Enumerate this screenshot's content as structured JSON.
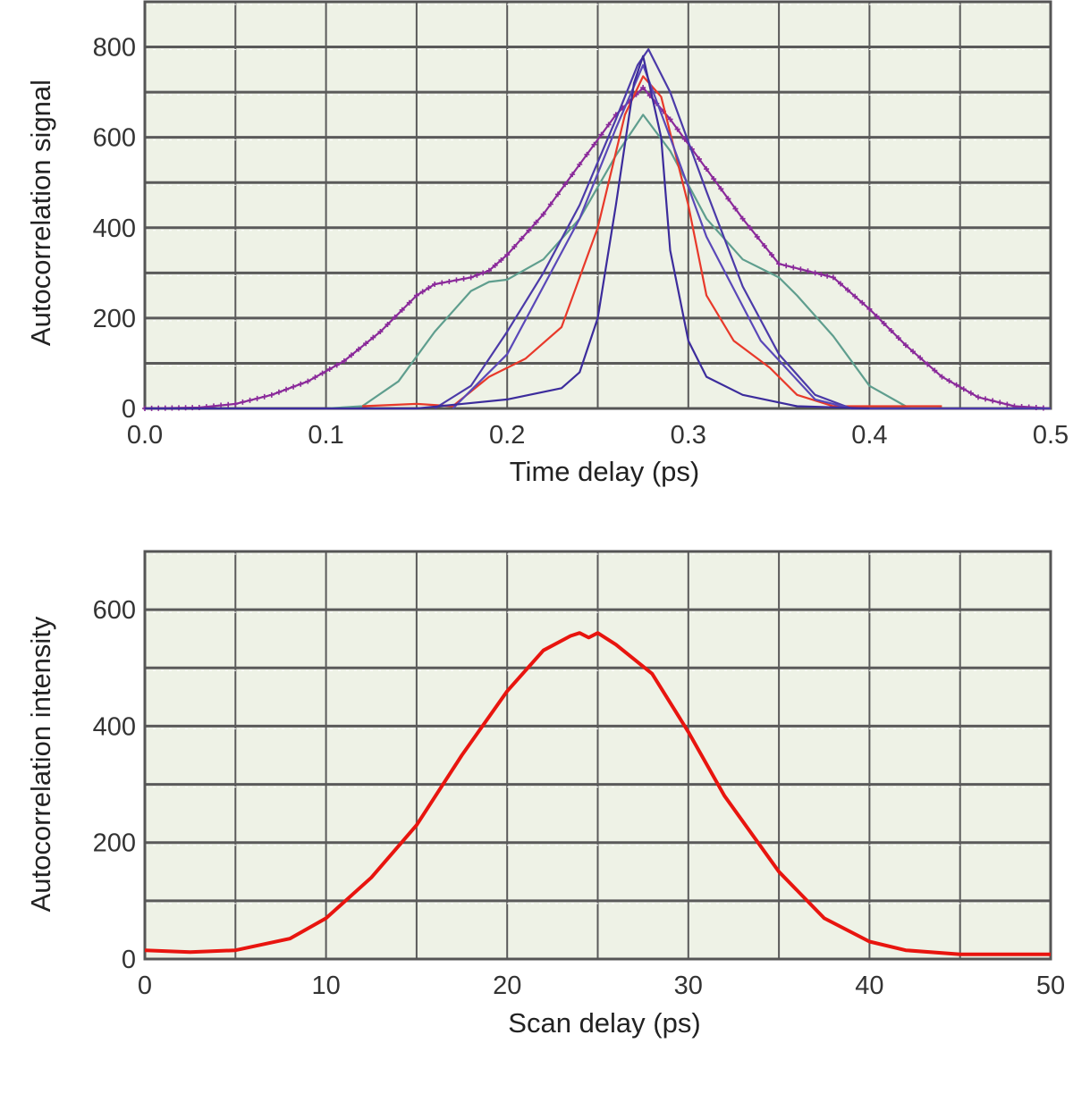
{
  "chart_data": [
    {
      "type": "line",
      "xlabel": "Time delay (ps)",
      "ylabel": "Autocorrelation signal",
      "xlim": [
        0,
        0.5
      ],
      "ylim": [
        0,
        900
      ],
      "x_ticks": [
        "0.0",
        "0.1",
        "0.2",
        "0.3",
        "0.4",
        "0.5"
      ],
      "x_tick_values": [
        0,
        0.1,
        0.2,
        0.3,
        0.4,
        0.5
      ],
      "y_ticks": [
        "0",
        "200",
        "400",
        "600",
        "800"
      ],
      "y_tick_values": [
        0,
        200,
        400,
        600,
        800
      ],
      "x_grid_step": 0.05,
      "y_grid_step": 100,
      "grid": true,
      "background": "#eef2e6",
      "series": [
        {
          "color": "#8a2a9a",
          "marker": "plus",
          "points": [
            [
              0,
              0
            ],
            [
              0.03,
              2
            ],
            [
              0.05,
              10
            ],
            [
              0.07,
              30
            ],
            [
              0.09,
              60
            ],
            [
              0.11,
              105
            ],
            [
              0.13,
              170
            ],
            [
              0.15,
              250
            ],
            [
              0.16,
              275
            ],
            [
              0.18,
              290
            ],
            [
              0.19,
              305
            ],
            [
              0.2,
              340
            ],
            [
              0.22,
              430
            ],
            [
              0.24,
              540
            ],
            [
              0.26,
              650
            ],
            [
              0.275,
              710
            ],
            [
              0.29,
              640
            ],
            [
              0.31,
              530
            ],
            [
              0.33,
              420
            ],
            [
              0.35,
              320
            ],
            [
              0.37,
              300
            ],
            [
              0.38,
              290
            ],
            [
              0.4,
              220
            ],
            [
              0.42,
              140
            ],
            [
              0.44,
              70
            ],
            [
              0.46,
              25
            ],
            [
              0.48,
              5
            ],
            [
              0.5,
              0
            ]
          ]
        },
        {
          "color": "#5f9e8e",
          "points": [
            [
              0.1,
              0
            ],
            [
              0.12,
              5
            ],
            [
              0.14,
              60
            ],
            [
              0.16,
              170
            ],
            [
              0.18,
              260
            ],
            [
              0.19,
              280
            ],
            [
              0.2,
              285
            ],
            [
              0.22,
              330
            ],
            [
              0.24,
              420
            ],
            [
              0.26,
              560
            ],
            [
              0.275,
              650
            ],
            [
              0.29,
              570
            ],
            [
              0.31,
              420
            ],
            [
              0.33,
              330
            ],
            [
              0.35,
              290
            ],
            [
              0.36,
              250
            ],
            [
              0.38,
              160
            ],
            [
              0.4,
              50
            ],
            [
              0.42,
              5
            ],
            [
              0.44,
              0
            ]
          ]
        },
        {
          "color": "#e8392a",
          "points": [
            [
              0.12,
              5
            ],
            [
              0.15,
              10
            ],
            [
              0.17,
              5
            ],
            [
              0.19,
              70
            ],
            [
              0.21,
              110
            ],
            [
              0.23,
              180
            ],
            [
              0.25,
              400
            ],
            [
              0.265,
              650
            ],
            [
              0.275,
              735
            ],
            [
              0.285,
              690
            ],
            [
              0.3,
              450
            ],
            [
              0.31,
              250
            ],
            [
              0.325,
              150
            ],
            [
              0.345,
              90
            ],
            [
              0.36,
              30
            ],
            [
              0.38,
              5
            ],
            [
              0.44,
              5
            ]
          ]
        },
        {
          "color": "#4b3aa8",
          "points": [
            [
              0.16,
              0
            ],
            [
              0.18,
              50
            ],
            [
              0.2,
              170
            ],
            [
              0.22,
              300
            ],
            [
              0.24,
              450
            ],
            [
              0.26,
              640
            ],
            [
              0.272,
              760
            ],
            [
              0.278,
              795
            ],
            [
              0.29,
              700
            ],
            [
              0.31,
              480
            ],
            [
              0.33,
              270
            ],
            [
              0.35,
              120
            ],
            [
              0.37,
              30
            ],
            [
              0.39,
              0
            ],
            [
              0.5,
              0
            ]
          ]
        },
        {
          "color": "#5a48b8",
          "points": [
            [
              0.17,
              0
            ],
            [
              0.2,
              120
            ],
            [
              0.24,
              420
            ],
            [
              0.26,
              620
            ],
            [
              0.275,
              760
            ],
            [
              0.29,
              600
            ],
            [
              0.31,
              380
            ],
            [
              0.34,
              150
            ],
            [
              0.37,
              20
            ],
            [
              0.39,
              0
            ]
          ]
        },
        {
          "color": "#3c2c9c",
          "points": [
            [
              0,
              0
            ],
            [
              0.15,
              0
            ],
            [
              0.2,
              20
            ],
            [
              0.23,
              45
            ],
            [
              0.24,
              80
            ],
            [
              0.25,
              200
            ],
            [
              0.26,
              450
            ],
            [
              0.27,
              720
            ],
            [
              0.275,
              780
            ],
            [
              0.285,
              600
            ],
            [
              0.29,
              350
            ],
            [
              0.3,
              150
            ],
            [
              0.31,
              70
            ],
            [
              0.33,
              30
            ],
            [
              0.36,
              5
            ],
            [
              0.4,
              0
            ]
          ]
        }
      ]
    },
    {
      "type": "line",
      "xlabel": "Scan delay (ps)",
      "ylabel": "Autocorrelation intensity",
      "xlim": [
        0,
        50
      ],
      "ylim": [
        0,
        700
      ],
      "x_ticks": [
        "0",
        "10",
        "20",
        "30",
        "40",
        "50"
      ],
      "x_tick_values": [
        0,
        10,
        20,
        30,
        40,
        50
      ],
      "y_ticks": [
        "0",
        "200",
        "400",
        "600"
      ],
      "y_tick_values": [
        0,
        200,
        400,
        600
      ],
      "x_grid_step": 5,
      "y_grid_step": 100,
      "grid": true,
      "background": "#eef2e6",
      "series": [
        {
          "color": "#e8150f",
          "points": [
            [
              0,
              15
            ],
            [
              2.5,
              12
            ],
            [
              5,
              15
            ],
            [
              8,
              35
            ],
            [
              10,
              70
            ],
            [
              12.5,
              140
            ],
            [
              15,
              230
            ],
            [
              17.5,
              350
            ],
            [
              20,
              460
            ],
            [
              22,
              530
            ],
            [
              23.5,
              555
            ],
            [
              24,
              560
            ],
            [
              24.5,
              552
            ],
            [
              25,
              560
            ],
            [
              26,
              540
            ],
            [
              28,
              490
            ],
            [
              30,
              390
            ],
            [
              32,
              280
            ],
            [
              35,
              150
            ],
            [
              37.5,
              70
            ],
            [
              40,
              30
            ],
            [
              42,
              15
            ],
            [
              45,
              8
            ],
            [
              50,
              8
            ]
          ]
        }
      ]
    }
  ]
}
